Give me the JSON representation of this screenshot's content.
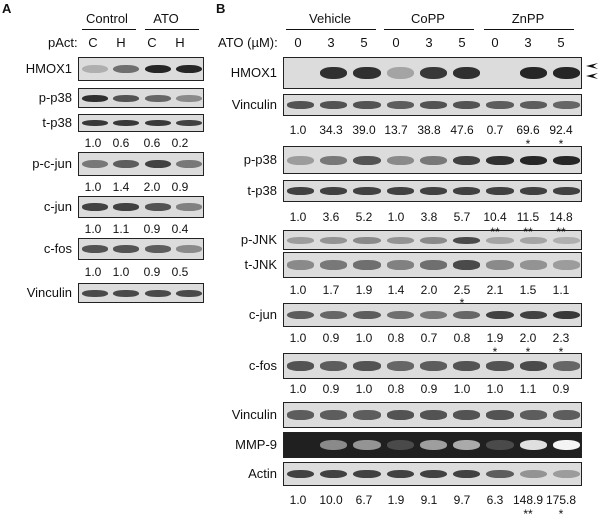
{
  "panel_a": {
    "letter": "A",
    "groups": [
      "Control",
      "ATO"
    ],
    "row_label": "pAct:",
    "conditions": [
      "C",
      "H",
      "C",
      "H"
    ],
    "blots": [
      "HMOX1",
      "p-p38",
      "t-p38",
      "p-c-jun",
      "c-jun",
      "c-fos",
      "Vinculin"
    ],
    "quant": {
      "p38": [
        "1.0",
        "0.6",
        "0.6",
        "0.2"
      ],
      "cjun_phospho": [
        "1.0",
        "1.4",
        "2.0",
        "0.9"
      ],
      "cjun": [
        "1.0",
        "1.1",
        "0.9",
        "0.4"
      ],
      "cfos": [
        "1.0",
        "1.0",
        "0.9",
        "0.5"
      ]
    }
  },
  "panel_b": {
    "letter": "B",
    "groups": [
      "Vehicle",
      "CoPP",
      "ZnPP"
    ],
    "row_label": "ATO (µM):",
    "doses": [
      "0",
      "3",
      "5",
      "0",
      "3",
      "5",
      "0",
      "3",
      "5"
    ],
    "blots": [
      "HMOX1",
      "Vinculin",
      "p-p38",
      "t-p38",
      "p-JNK",
      "t-JNK",
      "c-jun",
      "c-fos",
      "Vinculin",
      "MMP-9",
      "Actin"
    ],
    "quant": {
      "hmox1": [
        "1.0",
        "34.3",
        "39.0",
        "13.7",
        "38.8",
        "47.6",
        "0.7",
        "69.6",
        "92.4"
      ],
      "hmox1_sig": [
        "",
        "",
        "",
        "",
        "",
        "",
        "",
        "*",
        "*"
      ],
      "p38": [
        "1.0",
        "3.6",
        "5.2",
        "1.0",
        "3.8",
        "5.7",
        "10.4",
        "11.5",
        "14.8"
      ],
      "p38_sig": [
        "",
        "",
        "",
        "",
        "",
        "",
        "**",
        "**",
        "**"
      ],
      "jnk": [
        "1.0",
        "1.7",
        "1.9",
        "1.4",
        "2.0",
        "2.5",
        "2.1",
        "1.5",
        "1.1"
      ],
      "jnk_sig": [
        "",
        "",
        "",
        "",
        "",
        "*",
        "",
        "",
        ""
      ],
      "cjun": [
        "1.0",
        "0.9",
        "1.0",
        "0.8",
        "0.7",
        "0.8",
        "1.9",
        "2.0",
        "2.3"
      ],
      "cjun_sig": [
        "",
        "",
        "",
        "",
        "",
        "",
        "*",
        "*",
        "*"
      ],
      "cfos": [
        "1.0",
        "0.9",
        "1.0",
        "0.8",
        "0.9",
        "1.0",
        "1.0",
        "1.1",
        "0.9"
      ],
      "mmp9": [
        "1.0",
        "10.0",
        "6.7",
        "1.9",
        "9.1",
        "9.7",
        "6.3",
        "148.9",
        "175.8"
      ],
      "mmp9_sig": [
        "",
        "",
        "",
        "",
        "",
        "",
        "",
        "**",
        "*"
      ]
    }
  }
}
